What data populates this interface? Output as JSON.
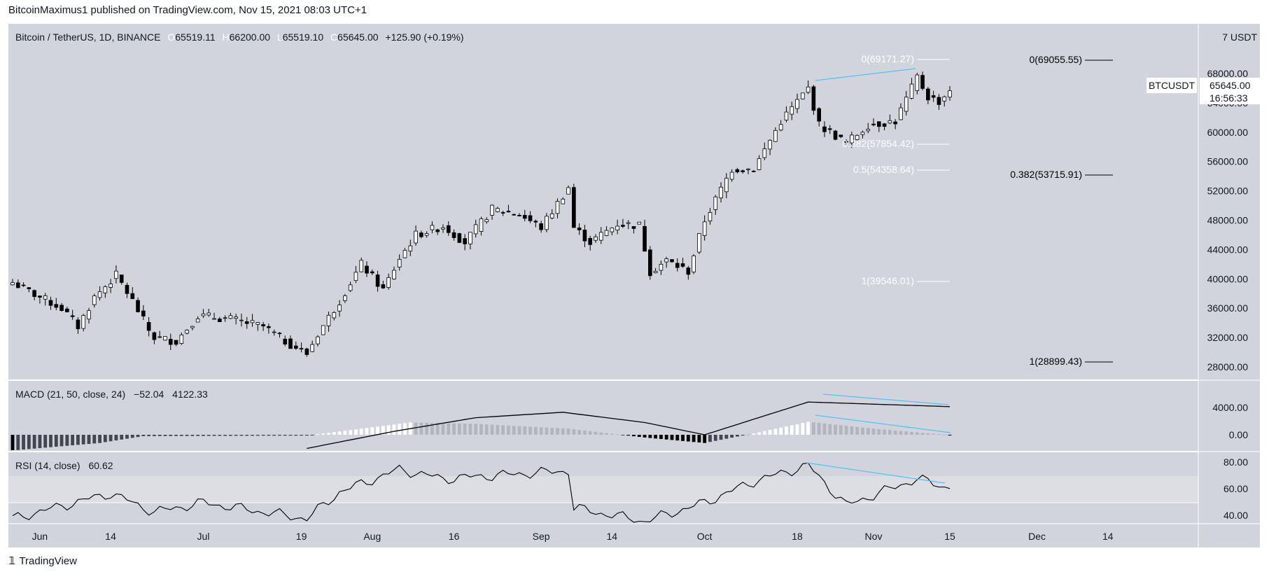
{
  "header": {
    "publisher_line": "BitcoinMaximus1 published on TradingView.com, Nov 15, 2021 08:03 UTC+1"
  },
  "footer": {
    "brand": "TradingView"
  },
  "colors": {
    "background": "#d1d4dc",
    "rsi_band": "#dcdee4",
    "up": "#ffffff",
    "down": "#000000",
    "trendline": "#4fc3f7",
    "macd_pos_hist": "#ffffff",
    "macd_pos_hist_fading": "#b2b5be",
    "macd_neg_hist": "#000000",
    "macd_neg_hist_fading": "#434651"
  },
  "price_pane": {
    "legend": {
      "symbol": "Bitcoin / TetherUS, 1D, BINANCE",
      "o_key": "O",
      "o": "65519.11",
      "h_key": "H",
      "h": "66200.00",
      "l_key": "L",
      "l": "65519.10",
      "c_key": "C",
      "c": "65645.00",
      "change": "+125.90 (+0.19%)"
    },
    "axis_top_label": "7 USDT",
    "ticks": [
      "68000.00",
      "64000.00",
      "60000.00",
      "56000.00",
      "52000.00",
      "48000.00",
      "44000.00",
      "40000.00",
      "36000.00",
      "32000.00",
      "28000.00"
    ],
    "last_price": {
      "symbol": "BTCUSDT",
      "price": "65645.00",
      "countdown": "16:56:33"
    },
    "fib_short": [
      {
        "label": "0(69171.27)",
        "price": 69171.27
      },
      {
        "label": "0.382(57854.42)",
        "price": 57854.42
      },
      {
        "label": "0.5(54358.64)",
        "price": 54358.64
      },
      {
        "label": "1(39546.01)",
        "price": 39546.01
      }
    ],
    "fib_long": [
      {
        "label": "0(69055.55)",
        "price": 69055.55
      },
      {
        "label": "0.382(53715.91)",
        "price": 53715.91
      },
      {
        "label": "1(28899.43)",
        "price": 28899.43
      }
    ]
  },
  "macd_pane": {
    "legend": "MACD (21, 50, close, 24)",
    "value1": "−52.04",
    "value2": "4122.33",
    "ticks": [
      "4000.00",
      "0.00"
    ]
  },
  "rsi_pane": {
    "legend": "RSI (14, close)",
    "value": "60.62",
    "ticks": [
      "80.00",
      "60.00",
      "40.00"
    ]
  },
  "time_axis": [
    "Jun",
    "14",
    "Jul",
    "19",
    "Aug",
    "16",
    "Sep",
    "14",
    "Oct",
    "18",
    "Nov",
    "15",
    "Dec",
    "14"
  ],
  "chart_data": {
    "type": "candlestick",
    "title": "Bitcoin / TetherUS, 1D, BINANCE",
    "x_range": [
      "2021-05-27",
      "2021-11-15"
    ],
    "y_range_price": [
      26000,
      72000
    ],
    "close_anchors": [
      [
        "2021-05-27",
        39500
      ],
      [
        "2021-06-01",
        37500
      ],
      [
        "2021-06-05",
        36000
      ],
      [
        "2021-06-08",
        33500
      ],
      [
        "2021-06-11",
        37500
      ],
      [
        "2021-06-15",
        40500
      ],
      [
        "2021-06-18",
        37000
      ],
      [
        "2021-06-21",
        33000
      ],
      [
        "2021-06-22",
        32000
      ],
      [
        "2021-06-26",
        31500
      ],
      [
        "2021-06-30",
        35000
      ],
      [
        "2021-07-06",
        34500
      ],
      [
        "2021-07-12",
        33500
      ],
      [
        "2021-07-16",
        31500
      ],
      [
        "2021-07-20",
        29800
      ],
      [
        "2021-07-22",
        32500
      ],
      [
        "2021-07-26",
        37000
      ],
      [
        "2021-07-30",
        42000
      ],
      [
        "2021-08-03",
        38500
      ],
      [
        "2021-08-06",
        42800
      ],
      [
        "2021-08-09",
        46000
      ],
      [
        "2021-08-14",
        47200
      ],
      [
        "2021-08-18",
        45000
      ],
      [
        "2021-08-23",
        49500
      ],
      [
        "2021-08-28",
        48800
      ],
      [
        "2021-09-01",
        47000
      ],
      [
        "2021-09-06",
        52500
      ],
      [
        "2021-09-07",
        47000
      ],
      [
        "2021-09-10",
        45000
      ],
      [
        "2021-09-15",
        47500
      ],
      [
        "2021-09-19",
        47300
      ],
      [
        "2021-09-21",
        41000
      ],
      [
        "2021-09-24",
        42500
      ],
      [
        "2021-09-28",
        41000
      ],
      [
        "2021-10-01",
        48000
      ],
      [
        "2021-10-06",
        55000
      ],
      [
        "2021-10-10",
        55000
      ],
      [
        "2021-10-15",
        61500
      ],
      [
        "2021-10-20",
        66000
      ],
      [
        "2021-10-22",
        61000
      ],
      [
        "2021-10-27",
        58500
      ],
      [
        "2021-10-31",
        61000
      ],
      [
        "2021-11-05",
        61500
      ],
      [
        "2021-11-09",
        67500
      ],
      [
        "2021-11-11",
        64800
      ],
      [
        "2021-11-13",
        64200
      ],
      [
        "2021-11-15",
        65645
      ]
    ],
    "macd_line_anchors": [
      [
        "2021-07-20",
        -2000
      ],
      [
        "2021-08-05",
        500
      ],
      [
        "2021-08-20",
        2500
      ],
      [
        "2021-09-05",
        3300
      ],
      [
        "2021-09-20",
        1800
      ],
      [
        "2021-10-01",
        0
      ],
      [
        "2021-10-20",
        4800
      ],
      [
        "2021-11-15",
        4122
      ]
    ],
    "rsi_anchors": [
      [
        "2021-05-27",
        38
      ],
      [
        "2021-06-14",
        57
      ],
      [
        "2021-06-22",
        43
      ],
      [
        "2021-07-01",
        50
      ],
      [
        "2021-07-20",
        38
      ],
      [
        "2021-07-26",
        58
      ],
      [
        "2021-08-06",
        75
      ],
      [
        "2021-08-14",
        68
      ],
      [
        "2021-09-06",
        74
      ],
      [
        "2021-09-07",
        46
      ],
      [
        "2021-09-20",
        36
      ],
      [
        "2021-10-01",
        50
      ],
      [
        "2021-10-10",
        66
      ],
      [
        "2021-10-20",
        78
      ],
      [
        "2021-10-27",
        48
      ],
      [
        "2021-11-09",
        68
      ],
      [
        "2021-11-15",
        60.62
      ]
    ],
    "annotations": [
      "price rising trendline Oct 20 to Nov 10",
      "MACD bearish divergence lines",
      "RSI bearish divergence line"
    ]
  }
}
